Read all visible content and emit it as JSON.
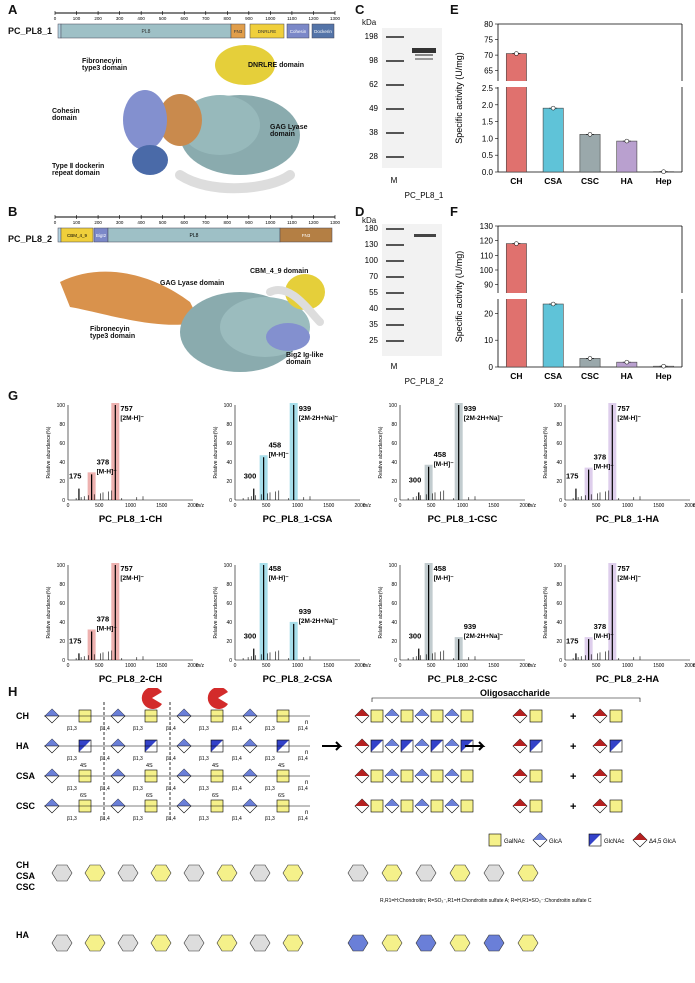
{
  "panels": {
    "A": "A",
    "B": "B",
    "C": "C",
    "D": "D",
    "E": "E",
    "F": "F",
    "G": "G",
    "H": "H"
  },
  "panelA": {
    "name": "PC_PL8_1",
    "ticks": [
      "0",
      "100",
      "200",
      "300",
      "400",
      "500",
      "600",
      "700",
      "800",
      "900",
      "1000",
      "1100",
      "1200",
      "1300"
    ],
    "domains": [
      "PL8",
      "FN3",
      "DNRLRE",
      "Cohesin",
      "Dockerin"
    ],
    "labels": {
      "fn3": "Fibronecyin\ntype3 domain",
      "dnrlre": "DNRLRE domain",
      "cohesin": "Cohesin\ndomain",
      "gag": "GAG Lyase\ndomain",
      "dock": "Type Ⅱ dockerin\nrepeat domain"
    }
  },
  "panelB": {
    "name": "PC_PL8_2",
    "ticks": [
      "0",
      "100",
      "200",
      "300",
      "400",
      "500",
      "600",
      "700",
      "800",
      "900",
      "1000",
      "1100",
      "1200",
      "1300"
    ],
    "domains": [
      "CBM_4_9",
      "BigI2",
      "PL8",
      "FN3"
    ],
    "labels": {
      "gag": "GAG Lyase domain",
      "cbm": "CBM_4_9 domain",
      "fn3": "Fibronecyin\ntype3 domain",
      "big": "Big2 Ig-like\ndomain"
    }
  },
  "panelC": {
    "unit": "kDa",
    "markers": [
      "198",
      "98",
      "62",
      "49",
      "38",
      "28"
    ],
    "lanes": [
      "M",
      "PC_PL8_1"
    ]
  },
  "panelD": {
    "unit": "kDa",
    "markers": [
      "180",
      "130",
      "100",
      "70",
      "55",
      "40",
      "35",
      "25"
    ],
    "lanes": [
      "M",
      "PC_PL8_2"
    ]
  },
  "chart_data": [
    {
      "type": "bar",
      "panel": "E",
      "ylabel": "Specific activity (U/mg)",
      "categories": [
        "CH",
        "CSA",
        "CSC",
        "HA",
        "Hep"
      ],
      "values": [
        70.5,
        1.9,
        1.12,
        0.92,
        0.01
      ],
      "colors": [
        "#e0716e",
        "#5fc3d8",
        "#9aa8ab",
        "#b9a0cf",
        "#cccccc"
      ],
      "yticks_upper": [
        "65",
        "70",
        "75",
        "80"
      ],
      "yticks_lower": [
        "0.0",
        "0.5",
        "1.0",
        "1.5",
        "2.0",
        "2.5"
      ]
    },
    {
      "type": "bar",
      "panel": "F",
      "ylabel": "Specific activity (U/mg)",
      "categories": [
        "CH",
        "CSA",
        "CSC",
        "HA",
        "Hep"
      ],
      "values": [
        118,
        23.5,
        3.2,
        1.8,
        0.3
      ],
      "colors": [
        "#e0716e",
        "#5fc3d8",
        "#9aa8ab",
        "#b9a0cf",
        "#cccccc"
      ],
      "yticks_upper": [
        "90",
        "100",
        "110",
        "120",
        "130"
      ],
      "yticks_lower": [
        "0",
        "10",
        "20"
      ]
    },
    {
      "type": "line",
      "panel": "G",
      "xlabel": "m/z",
      "ylabel": "Relative abundance(%)",
      "xticks": [
        "0",
        "500",
        "1000",
        "1500",
        "2000"
      ],
      "yticks": [
        "0",
        "20",
        "40",
        "60",
        "80",
        "100"
      ],
      "spectra": [
        {
          "title": "PC_PL8_1-CH",
          "color": "#e0716e",
          "peaks": [
            [
              175,
              12
            ],
            [
              378,
              27
            ],
            [
              757,
              100
            ]
          ],
          "labels": [
            [
              "757",
              "[2M-H]⁻"
            ],
            [
              "378",
              "[M-H]⁻"
            ],
            [
              "175",
              ""
            ]
          ]
        },
        {
          "title": "PC_PL8_1-CSA",
          "color": "#5fc3d8",
          "peaks": [
            [
              300,
              12
            ],
            [
              458,
              45
            ],
            [
              939,
              100
            ]
          ],
          "labels": [
            [
              "458",
              "[M-H]⁻"
            ],
            [
              "939",
              "[2M-2H+Na]⁻"
            ],
            [
              "300",
              ""
            ]
          ]
        },
        {
          "title": "PC_PL8_1-CSC",
          "color": "#8fa3a8",
          "peaks": [
            [
              300,
              8
            ],
            [
              458,
              35
            ],
            [
              939,
              100
            ]
          ],
          "labels": [
            [
              "458",
              "[M-H]⁻"
            ],
            [
              "939",
              "[2M-2H+Na]⁻"
            ],
            [
              "300",
              ""
            ]
          ]
        },
        {
          "title": "PC_PL8_1-HA",
          "color": "#c3a6dd",
          "peaks": [
            [
              175,
              12
            ],
            [
              378,
              32
            ],
            [
              757,
              100
            ]
          ],
          "labels": [
            [
              "757",
              "[2M-H]⁻"
            ],
            [
              "378",
              "[M-H]⁻"
            ],
            [
              "175",
              ""
            ]
          ]
        },
        {
          "title": "PC_PL8_2-CH",
          "color": "#e0716e",
          "peaks": [
            [
              175,
              7
            ],
            [
              378,
              30
            ],
            [
              757,
              100
            ]
          ],
          "labels": [
            [
              "757",
              "[2M-H]⁻"
            ],
            [
              "378",
              "[M-H]⁻"
            ],
            [
              "175",
              ""
            ]
          ]
        },
        {
          "title": "PC_PL8_2-CSA",
          "color": "#5fc3d8",
          "peaks": [
            [
              300,
              12
            ],
            [
              458,
              100
            ],
            [
              939,
              38
            ]
          ],
          "labels": [
            [
              "458",
              "[M-H]⁻"
            ],
            [
              "939",
              "[2M-2H+Na]⁻"
            ],
            [
              "300",
              ""
            ]
          ]
        },
        {
          "title": "PC_PL8_2-CSC",
          "color": "#8fa3a8",
          "peaks": [
            [
              300,
              12
            ],
            [
              458,
              100
            ],
            [
              939,
              22
            ]
          ],
          "labels": [
            [
              "458",
              "[M-H]⁻"
            ],
            [
              "939",
              "[2M-2H+Na]⁻"
            ],
            [
              "300",
              ""
            ]
          ]
        },
        {
          "title": "PC_PL8_2-HA",
          "color": "#c3a6dd",
          "peaks": [
            [
              175,
              7
            ],
            [
              378,
              22
            ],
            [
              757,
              100
            ]
          ],
          "labels": [
            [
              "757",
              "[2M-H]⁻"
            ],
            [
              "378",
              "[M-H]⁻"
            ],
            [
              "175",
              ""
            ]
          ]
        }
      ]
    }
  ],
  "panelH": {
    "enzyme": "PL8 Lyase",
    "oligo": "Oligosaccharide",
    "rows": [
      "CH",
      "HA",
      "CSA",
      "CSC"
    ],
    "linkages": [
      "β1,3",
      "β1,4",
      "β1,3",
      "β1,4",
      "β1,3",
      "β1,4",
      "β1,3",
      "β1,4"
    ],
    "sulf4": "4S",
    "sulf6": "6S",
    "plus": "+",
    "n": "n",
    "legend": [
      "GalNAc",
      "GlcA",
      "GlcNAc",
      "Δ4,5 GlcA"
    ],
    "struct_rows": [
      "CH\nCSA\nCSC",
      "HA"
    ],
    "note": "R,R1=H:Chondroitin; R=SO₃⁻,R1=H:Chondroitin sulfate A; R=H,R1=SO₃⁻:Chondroitin sulfate C"
  }
}
